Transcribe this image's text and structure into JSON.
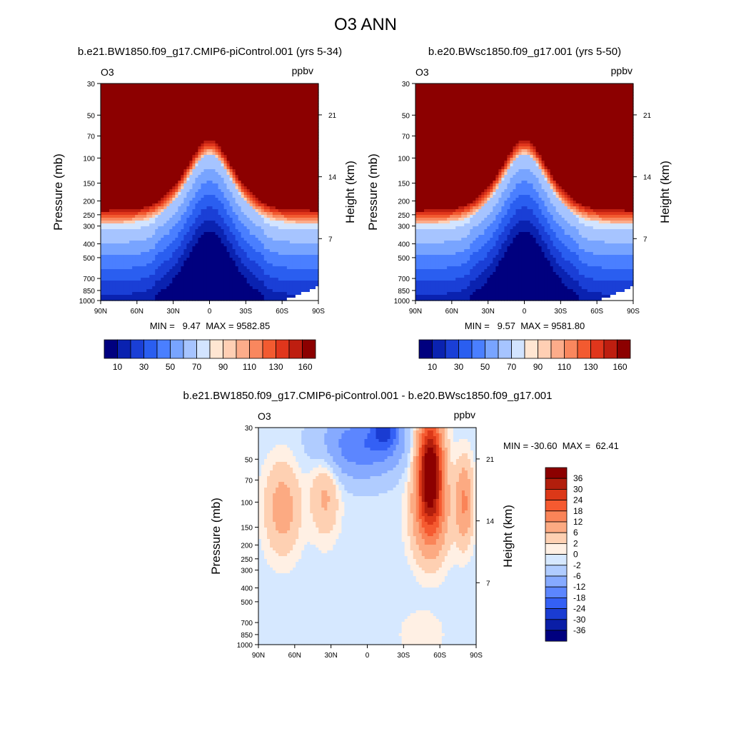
{
  "title": "O3 ANN",
  "axes": {
    "ylabel": "Pressure (mb)",
    "ylabel_right": "Height (km)",
    "pressure_ticks": [
      30,
      50,
      70,
      100,
      150,
      200,
      250,
      300,
      400,
      500,
      700,
      850,
      1000
    ],
    "height_ticks": [
      21,
      14,
      7
    ],
    "lat_ticks": [
      "90N",
      "60N",
      "30N",
      "0",
      "30S",
      "60S",
      "90S"
    ],
    "lat_values": [
      90,
      60,
      30,
      0,
      -30,
      -60,
      -90
    ],
    "pressure_range": [
      30,
      1000
    ],
    "lat_range": [
      90,
      -90
    ]
  },
  "chart_data": [
    {
      "type": "heatmap",
      "title": "b.e21.BW1850.f09_g17.CMIP6-piControl.001 (yrs 5-34)",
      "variable": "O3",
      "units": "ppbv",
      "stats": "MIN =   9.47  MAX = 9582.85",
      "colorbar": {
        "levels": [
          10,
          20,
          30,
          40,
          50,
          60,
          70,
          80,
          90,
          100,
          110,
          120,
          130,
          140,
          150,
          160
        ],
        "tick_labels": [
          "10",
          "30",
          "50",
          "70",
          "90",
          "110",
          "130",
          "160"
        ],
        "colors": [
          "#00007f",
          "#0a22b0",
          "#1a3fd6",
          "#2a5ef0",
          "#4a7fff",
          "#78a4ff",
          "#a6c4ff",
          "#d2e4ff",
          "#ffe6d2",
          "#ffcfb4",
          "#fcac8a",
          "#f9875e",
          "#f25a30",
          "#e0361c",
          "#be1e10",
          "#8c0000"
        ]
      }
    },
    {
      "type": "heatmap",
      "title": "b.e20.BWsc1850.f09_g17.001 (yrs 5-50)",
      "variable": "O3",
      "units": "ppbv",
      "stats": "MIN =   9.57  MAX = 9581.80",
      "colorbar": {
        "levels": [
          10,
          20,
          30,
          40,
          50,
          60,
          70,
          80,
          90,
          100,
          110,
          120,
          130,
          140,
          150,
          160
        ],
        "tick_labels": [
          "10",
          "30",
          "50",
          "70",
          "90",
          "110",
          "130",
          "160"
        ],
        "colors": [
          "#00007f",
          "#0a22b0",
          "#1a3fd6",
          "#2a5ef0",
          "#4a7fff",
          "#78a4ff",
          "#a6c4ff",
          "#d2e4ff",
          "#ffe6d2",
          "#ffcfb4",
          "#fcac8a",
          "#f9875e",
          "#f25a30",
          "#e0361c",
          "#be1e10",
          "#8c0000"
        ]
      }
    },
    {
      "type": "heatmap",
      "title": "b.e21.BW1850.f09_g17.CMIP6-piControl.001 - b.e20.BWsc1850.f09_g17.001",
      "variable": "O3",
      "units": "ppbv",
      "stats": "MIN = -30.60  MAX =  62.41",
      "colorbar": {
        "levels": [
          -36,
          -30,
          -24,
          -18,
          -12,
          -6,
          -2,
          0,
          2,
          6,
          12,
          18,
          24,
          30,
          36
        ],
        "tick_labels": [
          "36",
          "30",
          "24",
          "18",
          "12",
          "6",
          "2",
          "0",
          "-2",
          "-6",
          "-12",
          "-18",
          "-24",
          "-30",
          "-36"
        ],
        "colors": [
          "#8c0000",
          "#b21e0c",
          "#dc3818",
          "#f55a30",
          "#fa8458",
          "#fcaa82",
          "#fed0b2",
          "#fff0e4",
          "#d6e8ff",
          "#b0ccff",
          "#86aaff",
          "#5c86ff",
          "#3460f5",
          "#1a3cd2",
          "#0a1ea6",
          "#00007f"
        ]
      }
    }
  ]
}
